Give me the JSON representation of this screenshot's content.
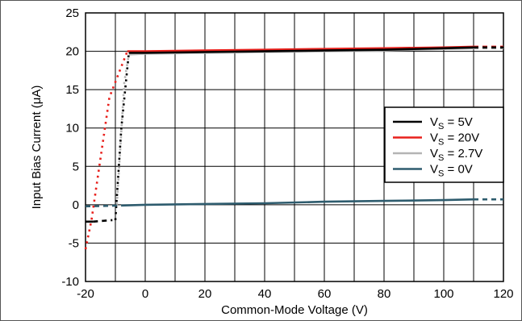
{
  "chart_data": {
    "type": "line",
    "title": "",
    "xlabel": "Common-Mode Voltage (V)",
    "ylabel_prefix": "Input Bias Current (",
    "ylabel_mu": "μ",
    "ylabel_suffix": "A)",
    "xlim": [
      -20,
      120
    ],
    "ylim": [
      -10,
      25
    ],
    "xticks": [
      -20,
      0,
      20,
      40,
      60,
      80,
      100,
      120
    ],
    "yticks": [
      -10,
      -5,
      0,
      5,
      10,
      15,
      20,
      25
    ],
    "x_grid_step": 10,
    "grid": true,
    "legend_position": "right",
    "series": [
      {
        "name_main": "V",
        "name_sub": "S",
        "name_value": " = 5V",
        "color": "#000000",
        "segments": [
          {
            "style": "solid",
            "points": [
              [
                -20,
                -2.2
              ],
              [
                -17.5,
                -2.2
              ]
            ]
          },
          {
            "style": "dashed",
            "points": [
              [
                -17.5,
                -2.2
              ],
              [
                -11,
                -2.0
              ]
            ]
          },
          {
            "style": "dotted",
            "points": [
              [
                -10,
                -2.0
              ],
              [
                -8,
                10
              ],
              [
                -5.5,
                19.8
              ]
            ]
          },
          {
            "style": "solid",
            "points": [
              [
                -5.5,
                19.8
              ],
              [
                0,
                19.8
              ],
              [
                20,
                19.9
              ],
              [
                40,
                20.0
              ],
              [
                60,
                20.1
              ],
              [
                80,
                20.2
              ],
              [
                100,
                20.4
              ],
              [
                110,
                20.5
              ]
            ]
          },
          {
            "style": "dashed",
            "points": [
              [
                110,
                20.5
              ],
              [
                120,
                20.5
              ]
            ]
          }
        ]
      },
      {
        "name_main": "V",
        "name_sub": "S",
        "name_value": " = 20V",
        "color": "#e8201c",
        "segments": [
          {
            "style": "dotted",
            "points": [
              [
                -20,
                -5.8
              ],
              [
                -18,
                -2
              ],
              [
                -12,
                14
              ],
              [
                -6,
                20
              ]
            ]
          },
          {
            "style": "solid",
            "points": [
              [
                -6,
                20
              ],
              [
                0,
                20
              ],
              [
                20,
                20.1
              ],
              [
                40,
                20.2
              ],
              [
                60,
                20.3
              ],
              [
                80,
                20.4
              ],
              [
                100,
                20.5
              ],
              [
                110,
                20.6
              ]
            ]
          },
          {
            "style": "dashed",
            "points": [
              [
                110,
                20.6
              ],
              [
                120,
                20.6
              ]
            ]
          }
        ]
      },
      {
        "name_main": "V",
        "name_sub": "S",
        "name_value": " = 2.7V",
        "color": "#b4b4b4",
        "segments": [
          {
            "style": "dotted",
            "points": [
              [
                -9.5,
                0
              ],
              [
                -7,
                16
              ],
              [
                -5.5,
                19.6
              ]
            ]
          },
          {
            "style": "solid",
            "points": [
              [
                -5.5,
                19.6
              ],
              [
                0,
                19.7
              ],
              [
                20,
                19.8
              ],
              [
                40,
                19.9
              ],
              [
                60,
                20.0
              ],
              [
                80,
                20.1
              ],
              [
                100,
                20.3
              ],
              [
                110,
                20.4
              ]
            ]
          },
          {
            "style": "dashed",
            "points": [
              [
                110,
                20.4
              ],
              [
                120,
                20.4
              ]
            ]
          }
        ]
      },
      {
        "name_main": "V",
        "name_sub": "S",
        "name_value": " = 0V",
        "color": "#2e5c6e",
        "segments": [
          {
            "style": "dashed",
            "points": [
              [
                -20,
                -0.2
              ],
              [
                -8,
                -0.1
              ]
            ]
          },
          {
            "style": "solid",
            "points": [
              [
                -8,
                -0.1
              ],
              [
                0,
                0
              ],
              [
                20,
                0.1
              ],
              [
                40,
                0.2
              ],
              [
                60,
                0.4
              ],
              [
                80,
                0.5
              ],
              [
                100,
                0.6
              ],
              [
                110,
                0.7
              ]
            ]
          },
          {
            "style": "dashed",
            "points": [
              [
                110,
                0.7
              ],
              [
                120,
                0.7
              ]
            ]
          }
        ]
      }
    ]
  }
}
